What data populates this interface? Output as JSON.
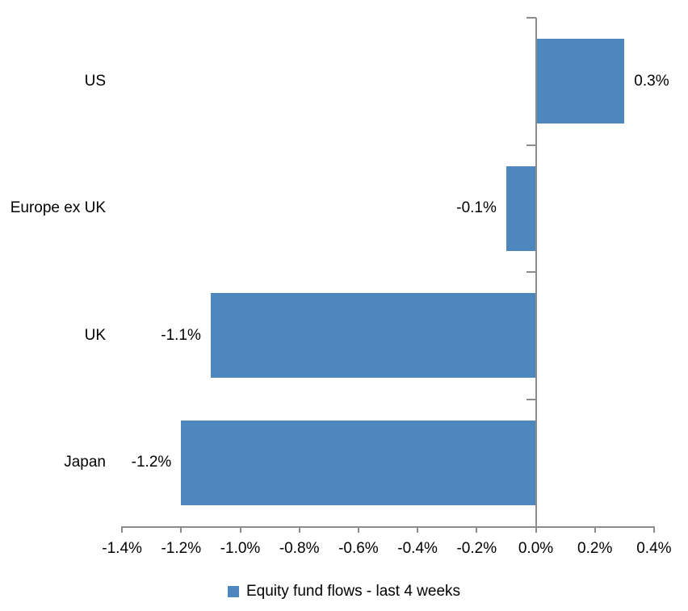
{
  "chart_data": {
    "type": "bar",
    "orientation": "horizontal",
    "categories": [
      "US",
      "Europe ex UK",
      "UK",
      "Japan"
    ],
    "values": [
      0.3,
      -0.1,
      -1.1,
      -1.2
    ],
    "value_labels": [
      "0.3%",
      "-0.1%",
      "-1.1%",
      "-1.2%"
    ],
    "title": "",
    "xlabel": "",
    "ylabel": "",
    "xlim": [
      -1.4,
      0.4
    ],
    "x_tick_values": [
      -1.4,
      -1.2,
      -1.0,
      -0.8,
      -0.6,
      -0.4,
      -0.2,
      0.0,
      0.2,
      0.4
    ],
    "x_tick_labels": [
      "-1.4%",
      "-1.2%",
      "-1.0%",
      "-0.8%",
      "-0.6%",
      "-0.4%",
      "-0.2%",
      "0.0%",
      "0.2%",
      "0.4%"
    ],
    "grid": false,
    "legend_position": "bottom",
    "series": [
      {
        "name": "Equity fund flows - last 4 weeks",
        "values": [
          0.3,
          -0.1,
          -1.1,
          -1.2
        ]
      }
    ],
    "bar_color": "#4E87BD",
    "axis_color": "#8C8C8C",
    "text_color": "#000000"
  },
  "legend": {
    "label": "Equity fund flows - last 4 weeks"
  }
}
